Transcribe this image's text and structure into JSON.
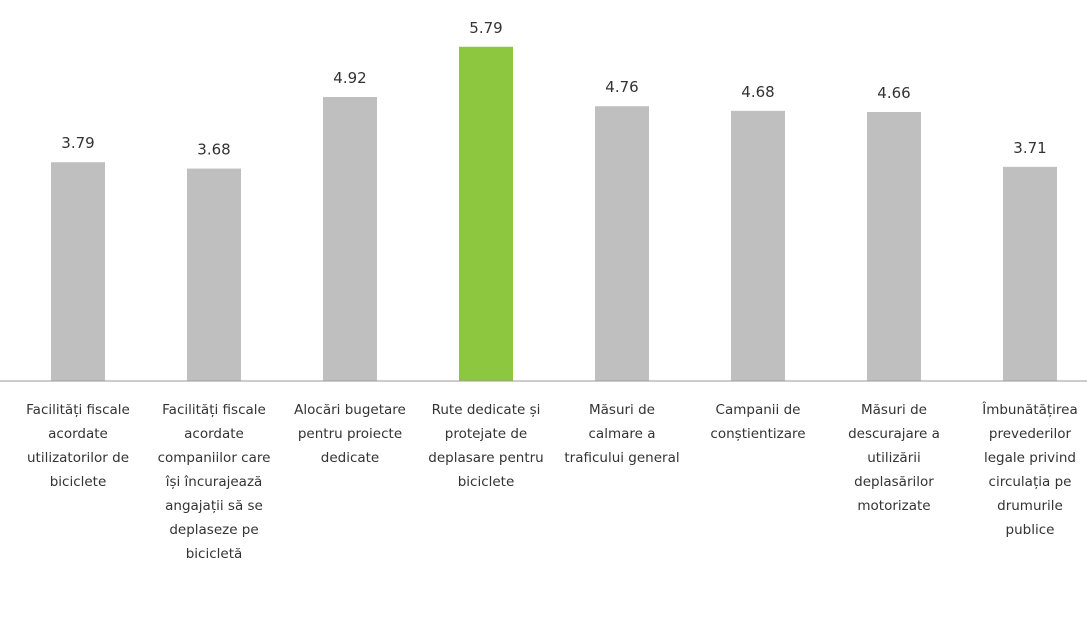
{
  "chart_data": {
    "type": "bar",
    "categories": [
      "Facilități fiscale acordate utilizatorilor de biciclete",
      "Facilități fiscale acordate companiilor care își încurajează angajații să se deplaseze pe bicicletă",
      "Alocări bugetare pentru proiecte dedicate",
      "Rute dedicate și protejate de deplasare pentru biciclete",
      "Măsuri de calmare a traficului general",
      "Campanii de conștientizare",
      "Măsuri de descurajare a utilizării deplasărilor motorizate",
      "Îmbunătățirea prevederilor legale privind circulația pe drumurile publice"
    ],
    "values": [
      3.79,
      3.68,
      4.92,
      5.79,
      4.76,
      4.68,
      4.66,
      3.71
    ],
    "colors": [
      "#bfbfbf",
      "#bfbfbf",
      "#bfbfbf",
      "#8dc63f",
      "#bfbfbf",
      "#bfbfbf",
      "#bfbfbf",
      "#bfbfbf"
    ],
    "ylim": [
      0,
      6.6
    ]
  }
}
